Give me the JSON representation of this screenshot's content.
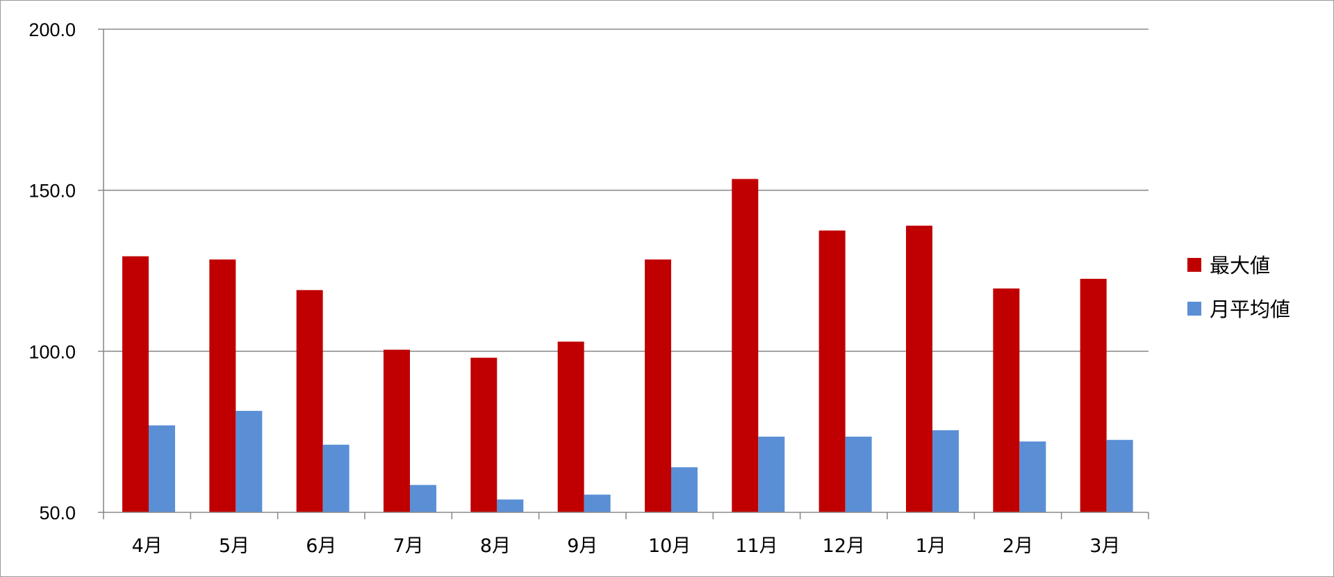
{
  "chart_data": {
    "type": "bar",
    "title": "",
    "xlabel": "",
    "ylabel": "",
    "categories": [
      "4月",
      "5月",
      "6月",
      "7月",
      "8月",
      "9月",
      "10月",
      "11月",
      "12月",
      "1月",
      "2月",
      "3月"
    ],
    "series": [
      {
        "name": "最大値",
        "color": "#c00000",
        "values": [
          129.5,
          128.5,
          119.0,
          100.5,
          98.0,
          103.0,
          128.5,
          153.5,
          137.5,
          139.0,
          119.5,
          122.5
        ]
      },
      {
        "name": "月平均値",
        "color": "#5a8fd6",
        "values": [
          77.0,
          81.5,
          71.0,
          58.5,
          54.0,
          55.5,
          64.0,
          73.5,
          73.5,
          75.5,
          72.0,
          72.5
        ]
      }
    ],
    "ylim": [
      50,
      200
    ],
    "yticks": [
      50,
      100,
      150,
      200
    ],
    "ytick_labels": [
      "50.0",
      "100.0",
      "150.0",
      "200.0"
    ],
    "grid": true,
    "legend_position": "right"
  }
}
